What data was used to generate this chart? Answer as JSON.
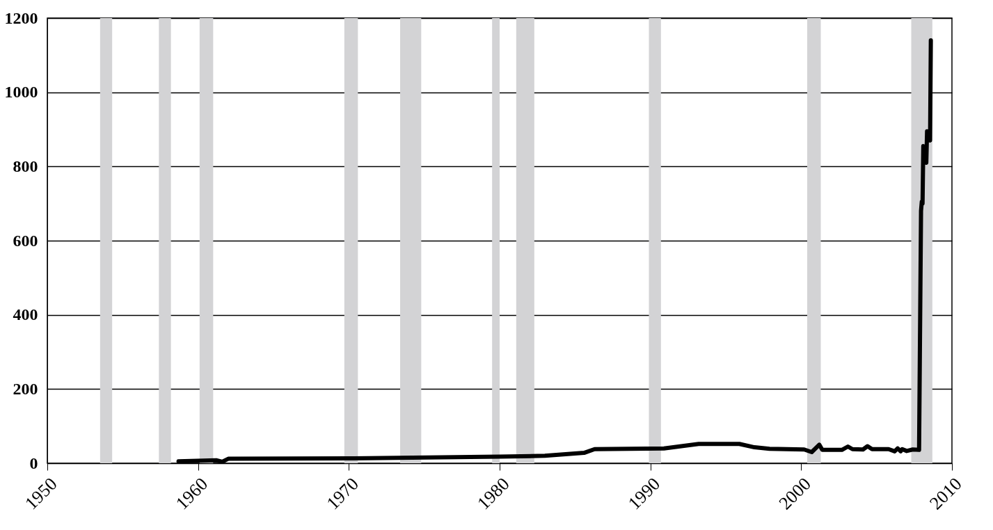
{
  "chart_data": {
    "type": "line",
    "x": [
      1958.7,
      1961.2,
      1961.6,
      1962.0,
      1970,
      1980,
      1983,
      1985.6,
      1986.3,
      1990.9,
      1993.2,
      1995.9,
      1996.9,
      1997.9,
      2000.2,
      2000.7,
      2001.2,
      2001.4,
      2002.7,
      2003.1,
      2003.4,
      2004.1,
      2004.4,
      2004.7,
      2005.8,
      2006.2,
      2006.4,
      2006.6,
      2006.7,
      2007.0,
      2007.4,
      2007.82,
      2007.95,
      2008.0,
      2008.05,
      2008.1,
      2008.3,
      2008.35,
      2008.55,
      2008.6
    ],
    "series": [
      {
        "color": "#000000",
        "values": [
          5,
          8,
          4,
          12,
          13,
          18,
          20,
          28,
          38,
          40,
          52,
          52,
          43,
          39,
          37,
          30,
          50,
          36,
          36,
          45,
          38,
          37,
          46,
          38,
          38,
          32,
          40,
          32,
          38,
          33,
          37,
          36,
          680,
          705,
          700,
          855,
          810,
          895,
          870,
          1140
        ]
      }
    ],
    "xlim": [
      1950,
      2010
    ],
    "xticks": [
      1950,
      1960,
      1970,
      1980,
      1990,
      2000,
      2010
    ],
    "ylim": [
      0,
      1200
    ],
    "yticks": [
      0,
      200,
      400,
      600,
      800,
      1000,
      1200
    ],
    "grid": "y",
    "line_style": "solid",
    "bands": [
      {
        "axis": "x",
        "from": 1953.5,
        "to": 1954.3,
        "color": "#d3d3d5"
      },
      {
        "axis": "x",
        "from": 1957.4,
        "to": 1958.2,
        "color": "#d3d3d5"
      },
      {
        "axis": "x",
        "from": 1960.1,
        "to": 1961.0,
        "color": "#d3d3d5"
      },
      {
        "axis": "x",
        "from": 1969.7,
        "to": 1970.6,
        "color": "#d3d3d5"
      },
      {
        "axis": "x",
        "from": 1973.4,
        "to": 1974.8,
        "color": "#d3d3d5"
      },
      {
        "axis": "x",
        "from": 1979.5,
        "to": 1980.0,
        "color": "#d3d3d5"
      },
      {
        "axis": "x",
        "from": 1981.1,
        "to": 1982.3,
        "color": "#d3d3d5"
      },
      {
        "axis": "x",
        "from": 1989.9,
        "to": 1990.7,
        "color": "#d3d3d5"
      },
      {
        "axis": "x",
        "from": 2000.4,
        "to": 2001.3,
        "color": "#d3d3d5"
      },
      {
        "axis": "x",
        "from": 2007.3,
        "to": 2008.7,
        "color": "#d3d3d5"
      }
    ]
  }
}
